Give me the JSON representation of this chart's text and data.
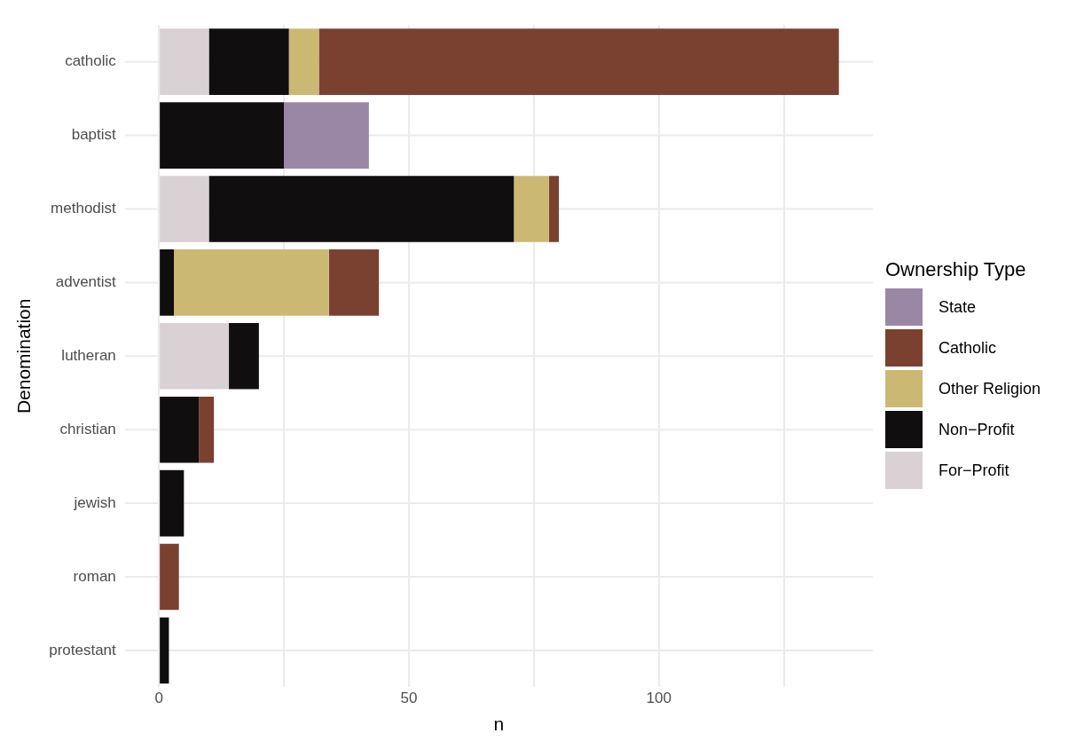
{
  "chart_data": {
    "type": "bar",
    "orientation": "horizontal",
    "stacked": true,
    "xlabel": "n",
    "ylabel": "Denomination",
    "legend_title": "Ownership Type",
    "legend": "right",
    "grid": true,
    "categories": [
      "catholic",
      "baptist",
      "methodist",
      "adventist",
      "lutheran",
      "christian",
      "jewish",
      "roman",
      "protestant"
    ],
    "xlim": [
      -6.8,
      142.8
    ],
    "xticks": [
      0,
      {
        "value": 25,
        "label": null
      },
      50,
      {
        "value": 75,
        "label": null
      },
      100,
      {
        "value": 125,
        "label": null
      }
    ],
    "series": [
      {
        "name": "For−Profit",
        "color": "#d9d1d4",
        "values": [
          10,
          0,
          10,
          0,
          14,
          0,
          0,
          0,
          0
        ]
      },
      {
        "name": "Non−Profit",
        "color": "#100e0f",
        "values": [
          16,
          25,
          61,
          3,
          6,
          8,
          5,
          0,
          2
        ]
      },
      {
        "name": "Other Religion",
        "color": "#cbb973",
        "values": [
          6,
          0,
          7,
          31,
          0,
          0,
          0,
          0,
          0
        ]
      },
      {
        "name": "Catholic",
        "color": "#7a4130",
        "values": [
          104,
          0,
          2,
          10,
          0,
          3,
          0,
          4,
          0
        ]
      },
      {
        "name": "State",
        "color": "#9a87a6",
        "values": [
          0,
          17,
          0,
          0,
          0,
          0,
          0,
          0,
          0
        ]
      }
    ]
  }
}
